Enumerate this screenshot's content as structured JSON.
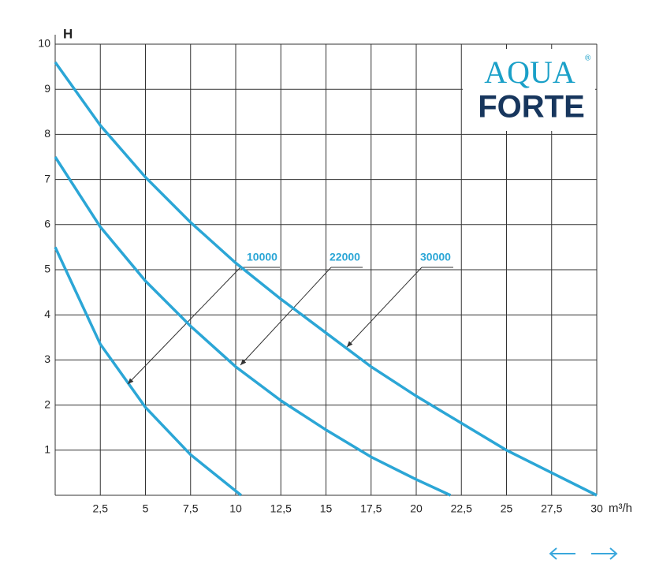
{
  "chart_data": {
    "type": "line",
    "ylabel": "H",
    "xlabel": "m³/h",
    "xlim": [
      0,
      30
    ],
    "ylim": [
      0,
      10
    ],
    "xticks": [
      {
        "value": 2.5,
        "label": "2,5"
      },
      5,
      {
        "value": 7.5,
        "label": "7,5"
      },
      10,
      {
        "value": 12.5,
        "label": "12,5"
      },
      15,
      {
        "value": 17.5,
        "label": "17,5"
      },
      20,
      {
        "value": 22.5,
        "label": "22,5"
      },
      25,
      {
        "value": 27.5,
        "label": "27,5"
      },
      30
    ],
    "yticks": [
      1,
      2,
      3,
      4,
      5,
      6,
      7,
      8,
      9,
      10
    ],
    "grid": true,
    "series": [
      {
        "name": "10000",
        "color": "#2ba6d6",
        "x": [
          0,
          2.5,
          5,
          7.5,
          10.3
        ],
        "values": [
          5.5,
          3.35,
          1.95,
          0.9,
          0
        ]
      },
      {
        "name": "22000",
        "color": "#2ba6d6",
        "x": [
          0,
          2.5,
          5,
          7.5,
          10,
          12.5,
          15,
          17.5,
          20,
          21.9
        ],
        "values": [
          7.5,
          5.95,
          4.75,
          3.75,
          2.85,
          2.1,
          1.45,
          0.85,
          0.35,
          0
        ]
      },
      {
        "name": "30000",
        "color": "#2ba6d6",
        "x": [
          0,
          2.5,
          5,
          7.5,
          10,
          12.5,
          15,
          17.5,
          20,
          22.5,
          25,
          27.5,
          30
        ],
        "values": [
          9.6,
          8.2,
          7.05,
          6.05,
          5.15,
          4.35,
          3.6,
          2.85,
          2.2,
          1.6,
          1.0,
          0.5,
          0
        ]
      }
    ]
  },
  "logo": {
    "line1": "AQUA",
    "line2": "FORTE",
    "mark": "®"
  }
}
